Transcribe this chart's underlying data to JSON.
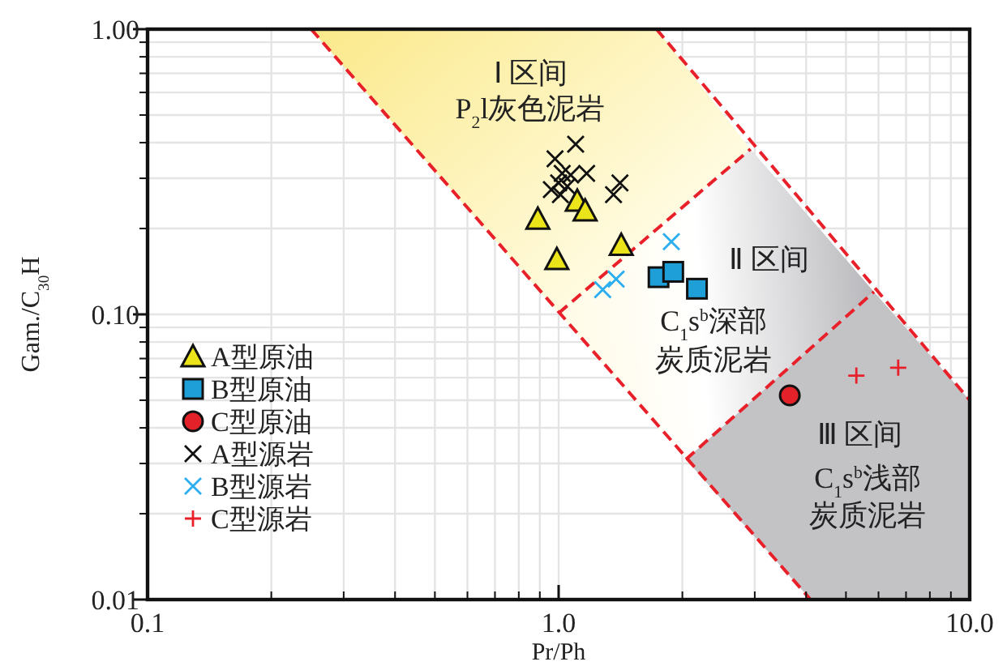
{
  "chart_data": {
    "type": "scatter",
    "xlabel": "Pr/Ph",
    "ylabel": "Gam./C$_{30}$H",
    "log": "xy",
    "grid": true,
    "legend": "bottom left",
    "xlim": [
      0.1,
      10
    ],
    "ylim": [
      0.01,
      1
    ],
    "xticks": [
      0.1,
      {
        "value": 1,
        "label": "1.0"
      },
      {
        "value": 10,
        "label": "10.0"
      }
    ],
    "yticks": [
      0.01,
      {
        "value": 0.1,
        "label": "0.10"
      },
      {
        "value": 1,
        "label": "1.00"
      }
    ],
    "series": [
      {
        "type": "line",
        "color": "#e8202a",
        "line_style": "dashed",
        "marker": "none",
        "x": [
          0.25,
          4.1
        ],
        "values": [
          1.0,
          0.01
        ]
      },
      {
        "type": "line",
        "color": "#e8202a",
        "line_style": "dashed",
        "marker": "none",
        "x": [
          1.73,
          10
        ],
        "values": [
          1.0,
          0.05
        ]
      },
      {
        "type": "line",
        "color": "#e8202a",
        "line_style": "dashed",
        "marker": "none",
        "x": [
          1.0,
          2.93
        ],
        "values": [
          0.101,
          0.38
        ]
      },
      {
        "type": "line",
        "color": "#e8202a",
        "line_style": "dashed",
        "marker": "none",
        "x": [
          2.04,
          5.85
        ],
        "values": [
          0.031,
          0.12
        ]
      },
      {
        "type": "scatter",
        "name": "A型原油",
        "color": "#ece41a",
        "marker": "triangle",
        "x": [
          0.89,
          0.99,
          1.11,
          1.16,
          1.42
        ],
        "values": [
          0.216,
          0.156,
          0.25,
          0.231,
          0.175
        ]
      },
      {
        "type": "scatter",
        "name": "B型原油",
        "color": "#1e9fd8",
        "marker": "square",
        "x": [
          1.75,
          1.9,
          2.17
        ],
        "values": [
          0.135,
          0.141,
          0.123
        ]
      },
      {
        "type": "scatter",
        "name": "C型原油",
        "color": "#e22228",
        "marker": "circle",
        "x": [
          3.65
        ],
        "values": [
          0.052
        ]
      },
      {
        "type": "scatter",
        "name": "A型源岩",
        "color": "#111111",
        "marker": "cross",
        "x": [
          1.1,
          0.98,
          1.02,
          0.96,
          1.0,
          1.05,
          1.07,
          1.17,
          1.41,
          1.36,
          1.01
        ],
        "values": [
          0.395,
          0.351,
          0.312,
          0.274,
          0.289,
          0.281,
          0.308,
          0.312,
          0.289,
          0.263,
          0.263
        ]
      },
      {
        "type": "scatter",
        "name": "B型源岩",
        "color": "#2aaef0",
        "marker": "cross",
        "x": [
          1.88,
          1.28,
          1.38
        ],
        "values": [
          0.18,
          0.122,
          0.133
        ]
      },
      {
        "type": "scatter",
        "name": "C型源岩",
        "color": "#e8202a",
        "marker": "plus",
        "x": [
          5.3,
          6.7
        ],
        "values": [
          0.061,
          0.065
        ]
      }
    ],
    "annotations": [
      "Ⅰ 区间",
      "P$_{2}$l灰色泥岩",
      "Ⅱ 区间",
      "C$_{1}$s$^{b}$深部",
      "炭质泥岩",
      "Ⅲ 区间",
      "C$_{1}$s$^{b}$浅部",
      "炭质泥岩"
    ]
  }
}
